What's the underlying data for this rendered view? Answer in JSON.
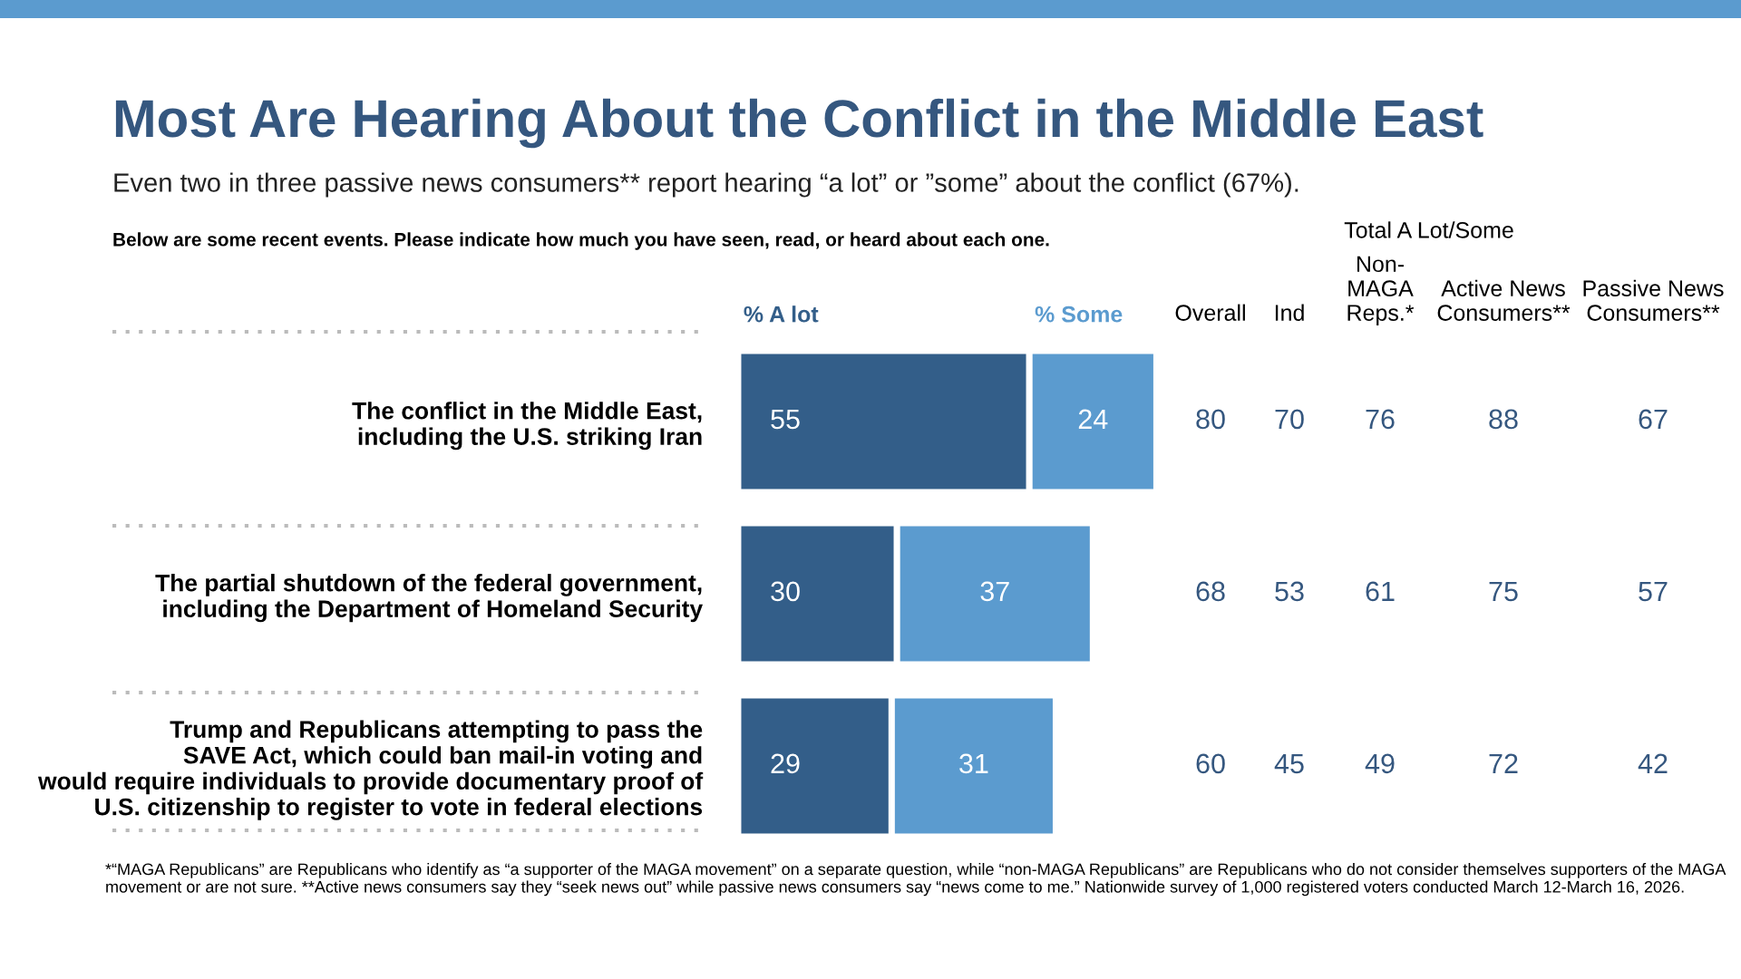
{
  "chart_data": [
    {
      "type": "bar",
      "title": "Most Are Hearing About the Conflict in the Middle East",
      "subtitle": "Even two in three passive news consumers** report hearing “a lot” or ”some” about the conflict (67%).",
      "orientation": "horizontal",
      "stacked": true,
      "data_labels": true,
      "categories": [
        "The conflict in the Middle East,\nincluding the U.S. striking Iran",
        "The partial shutdown of the federal government,\nincluding the Department of Homeland Security",
        "Trump and Republicans attempting to pass the\nSAVE Act, which could ban mail-in voting and\nwould require individuals to provide documentary proof of\nU.S. citizenship to register to vote in federal elections"
      ],
      "series": [
        {
          "name": "% A lot",
          "color": "#335e89",
          "values": [
            55,
            30,
            29
          ]
        },
        {
          "name": "% Some",
          "color": "#5b9bcf",
          "values": [
            24,
            37,
            31
          ]
        }
      ],
      "annotations": [
        "Below are some recent events. Please indicate how much you have seen, read, or heard about each one.",
        "*“MAGA Republicans” are Republicans who identify as “a supporter of the MAGA movement” on a separate question, while “non-MAGA Republicans” are Republicans who do not consider themselves supporters of the MAGA movement or are not sure. **Active news consumers say they “seek news out” while passive news consumers say “news come to me.” Nationwide survey of 1,000 registered voters conducted March 12-March 16, 2026."
      ]
    },
    {
      "type": "heatmap",
      "title": "Total A Lot/Some",
      "data_labels": true,
      "categories": [
        "Overall",
        "Ind",
        "Non-\nMAGA\nReps.*",
        "Active News\nConsumers**",
        "Passive News\nConsumers**"
      ],
      "y_categories": [
        null,
        null,
        null
      ],
      "cells": [
        [
          80,
          70,
          76,
          88,
          67
        ],
        [
          68,
          53,
          61,
          75,
          57
        ],
        [
          60,
          45,
          49,
          72,
          42
        ]
      ]
    }
  ]
}
